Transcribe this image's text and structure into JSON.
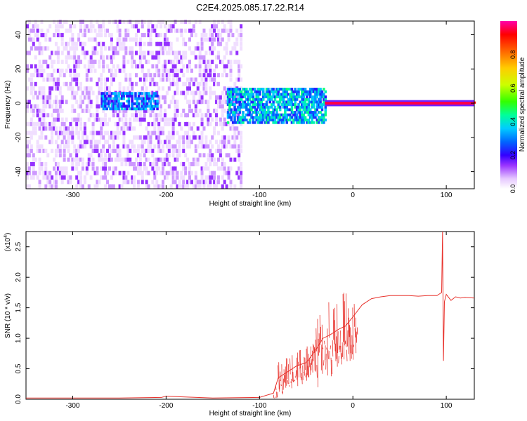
{
  "title": "C2E4.2025.085.17.22.R14",
  "chart_data": [
    {
      "type": "heatmap",
      "xlabel": "Height of straight line (km)",
      "ylabel": "Frequency (Hz)",
      "xlim": [
        -350,
        130
      ],
      "ylim": [
        -50,
        48
      ],
      "xticks": [
        -300,
        -200,
        -100,
        0,
        100
      ],
      "yticks": [
        -40,
        -20,
        0,
        20,
        40
      ],
      "colorbar": {
        "label": "Normalized spectral amplitude",
        "range": [
          0.0,
          1.0
        ],
        "ticks": [
          0.0,
          0.2,
          0.4,
          0.6,
          0.8
        ],
        "colormap": [
          "#ffffff",
          "#e6c8ff",
          "#9933ff",
          "#3300ff",
          "#0066ff",
          "#00ccff",
          "#00ff99",
          "#33ff00",
          "#ccff00",
          "#ffcc00",
          "#ff6600",
          "#ff0000",
          "#ff00aa"
        ]
      },
      "description_regions": [
        {
          "x_range": [
            -350,
            -120
          ],
          "freq_range": [
            -50,
            48
          ],
          "amplitude": 0.12
        },
        {
          "x_range": [
            -270,
            -210
          ],
          "freq_range": [
            -4,
            6
          ],
          "amplitude": 0.3
        },
        {
          "x_range": [
            -135,
            -30
          ],
          "freq_range": [
            -12,
            8
          ],
          "amplitude": 0.35
        },
        {
          "x_range": [
            -30,
            130
          ],
          "freq_range": [
            -1,
            1
          ],
          "amplitude": 0.95
        }
      ]
    },
    {
      "type": "line",
      "xlabel": "Height of straight line (km)",
      "ylabel": "SNR (10 * v/v)",
      "scale_label": "(x10",
      "scale_exp": "4",
      "xlim": [
        -350,
        130
      ],
      "ylim": [
        0.0,
        2.75
      ],
      "xticks": [
        -300,
        -200,
        -100,
        0,
        100
      ],
      "yticks": [
        0.0,
        0.5,
        1.0,
        1.5,
        2.0,
        2.5
      ],
      "series": [
        {
          "color": "#e8322c",
          "x": [
            -350,
            -300,
            -250,
            -205,
            -200,
            -150,
            -100,
            -85,
            -80,
            -70,
            -60,
            -50,
            -40,
            -32,
            -25,
            -15,
            -8,
            0,
            10,
            20,
            30,
            40,
            50,
            60,
            70,
            80,
            90,
            95,
            96,
            97,
            98,
            100,
            105,
            110,
            115,
            120,
            130
          ],
          "y": [
            0.02,
            0.02,
            0.02,
            0.03,
            0.05,
            0.02,
            0.03,
            0.1,
            0.35,
            0.45,
            0.55,
            0.6,
            0.8,
            1.0,
            1.05,
            1.15,
            1.2,
            1.35,
            1.55,
            1.65,
            1.68,
            1.7,
            1.7,
            1.7,
            1.69,
            1.7,
            1.7,
            1.75,
            2.75,
            0.63,
            1.6,
            1.72,
            1.62,
            1.68,
            1.66,
            1.67,
            1.66
          ]
        }
      ]
    }
  ]
}
